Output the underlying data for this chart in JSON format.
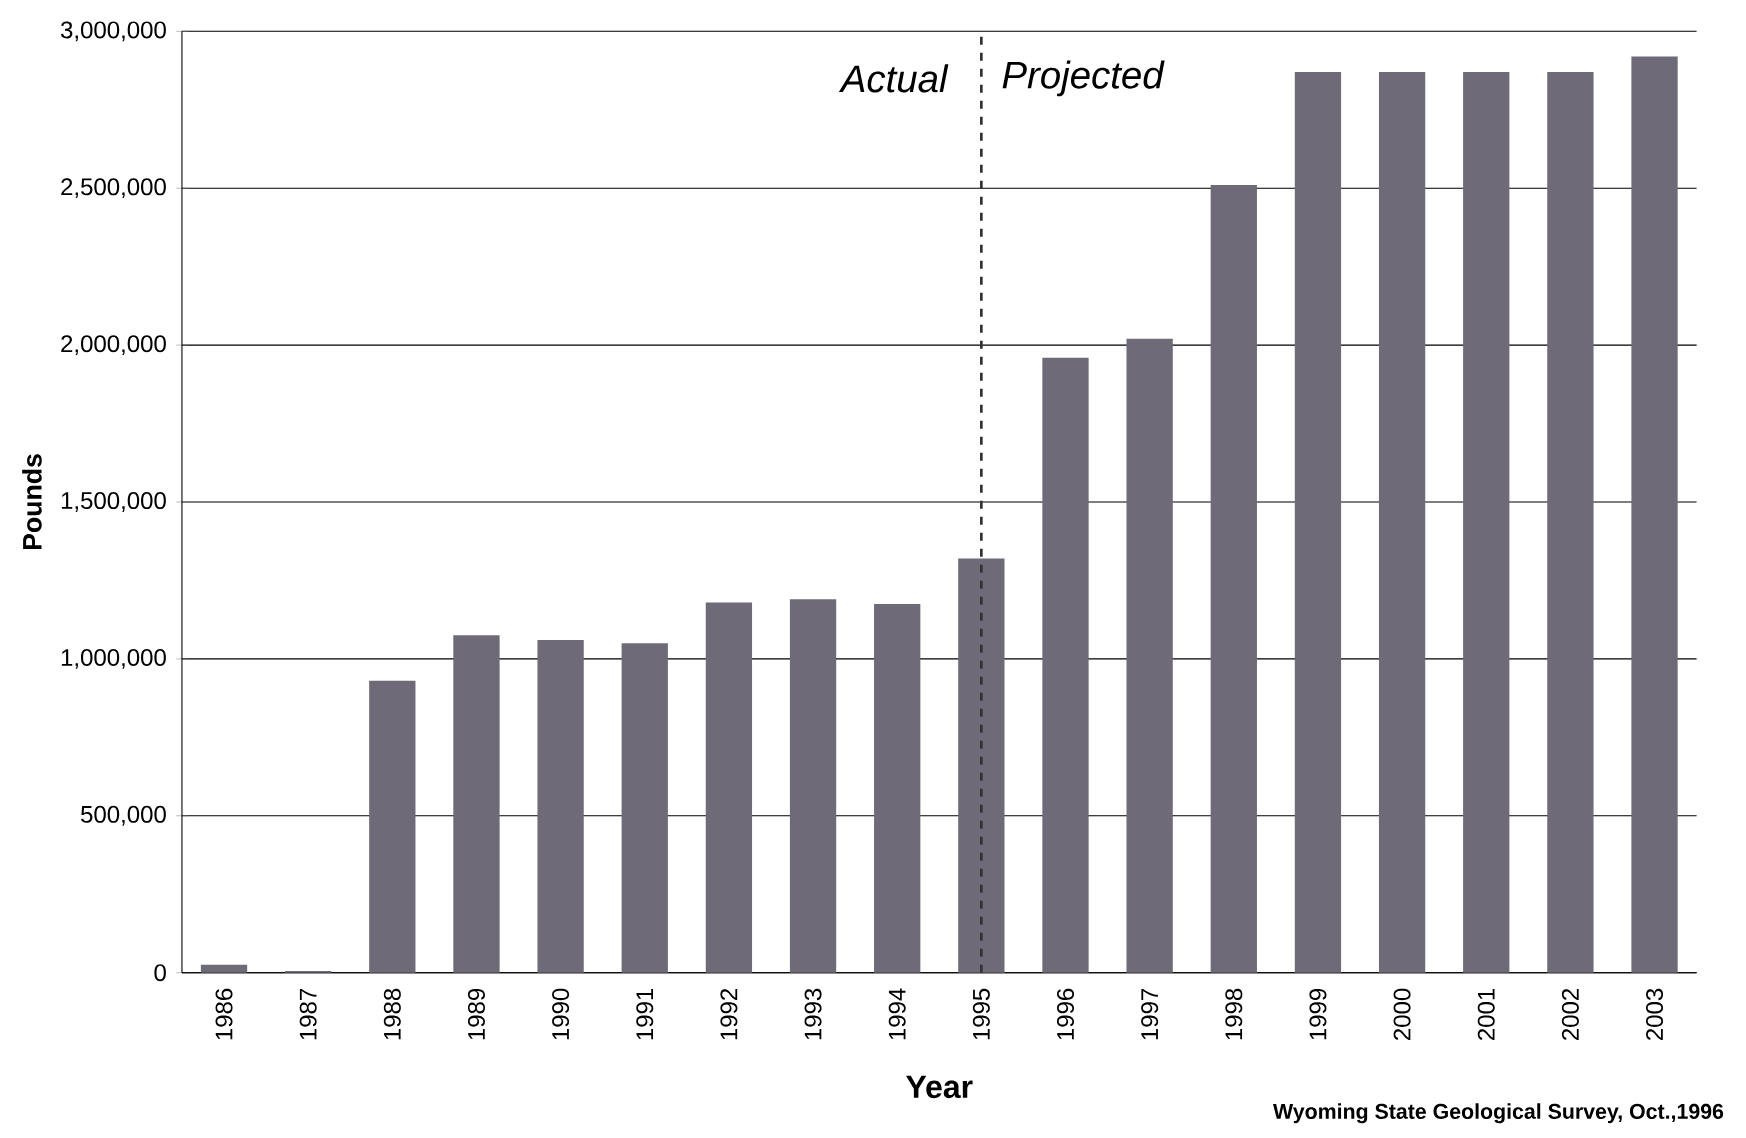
{
  "chart_data": {
    "type": "bar",
    "xlabel": "Year",
    "ylabel": "Pounds",
    "categories": [
      "1986",
      "1987",
      "1988",
      "1989",
      "1990",
      "1991",
      "1992",
      "1993",
      "1994",
      "1995",
      "1996",
      "1997",
      "1998",
      "1999",
      "2000",
      "2001",
      "2002",
      "2003"
    ],
    "values": [
      25000,
      5000,
      930000,
      1075000,
      1060000,
      1050000,
      1180000,
      1190000,
      1175000,
      1320000,
      1960000,
      2020000,
      2510000,
      2870000,
      2870000,
      2870000,
      2870000,
      2920000
    ],
    "color": "#6e6a78",
    "ylim": [
      0,
      3000000
    ],
    "yticks": [
      {
        "value": 0,
        "label": "0"
      },
      {
        "value": 500000,
        "label": "500,000"
      },
      {
        "value": 1000000,
        "label": "1,000,000"
      },
      {
        "value": 1500000,
        "label": "1,500,000"
      },
      {
        "value": 2000000,
        "label": "2,000,000"
      },
      {
        "value": 2500000,
        "label": "2,500,000"
      },
      {
        "value": 3000000,
        "label": "3,000,000"
      }
    ],
    "grid": "y",
    "ref_lines": [
      {
        "axis": "x",
        "value": "1995",
        "color": "#333333",
        "line_style": "dashed"
      }
    ],
    "annotations": [
      "Actual",
      "Projected",
      "Wyoming State Geological Survey, Oct.,1996"
    ]
  }
}
